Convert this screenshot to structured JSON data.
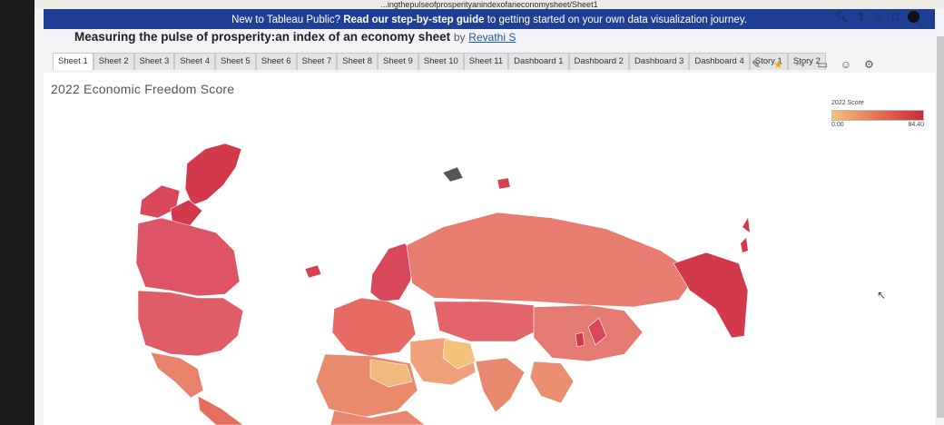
{
  "browser": {
    "url": "...ingthepulseofprosperityanindexofaneconomysheet/Sheet1",
    "icons": [
      "search-icon",
      "share-icon",
      "star-icon",
      "square-icon",
      "profile-icon",
      "menu-icon"
    ]
  },
  "banner": {
    "prefix": "New to Tableau Public?",
    "link": "Read our step-by-step guide",
    "suffix": "to getting started on your own data visualization journey."
  },
  "viz": {
    "title": "Measuring the pulse of prosperity:an index of an economy sheet",
    "by": "by",
    "author": "Revathi S"
  },
  "tabs": [
    "Sheet 1",
    "Sheet 2",
    "Sheet 3",
    "Sheet 4",
    "Sheet 5",
    "Sheet 6",
    "Sheet 7",
    "Sheet 8",
    "Sheet 9",
    "Sheet 10",
    "Sheet 11",
    "Dashboard 1",
    "Dashboard 2",
    "Dashboard 3",
    "Dashboard 4",
    "Story 1",
    "Story 2"
  ],
  "active_tab": "Sheet 1",
  "sheet": {
    "title": "2022 Economic Freedom Score"
  },
  "legend": {
    "title": "2022 Score",
    "min": "0.00",
    "max": "84.40",
    "colors": [
      "#f2c27a",
      "#e57255",
      "#c82a3a"
    ]
  }
}
